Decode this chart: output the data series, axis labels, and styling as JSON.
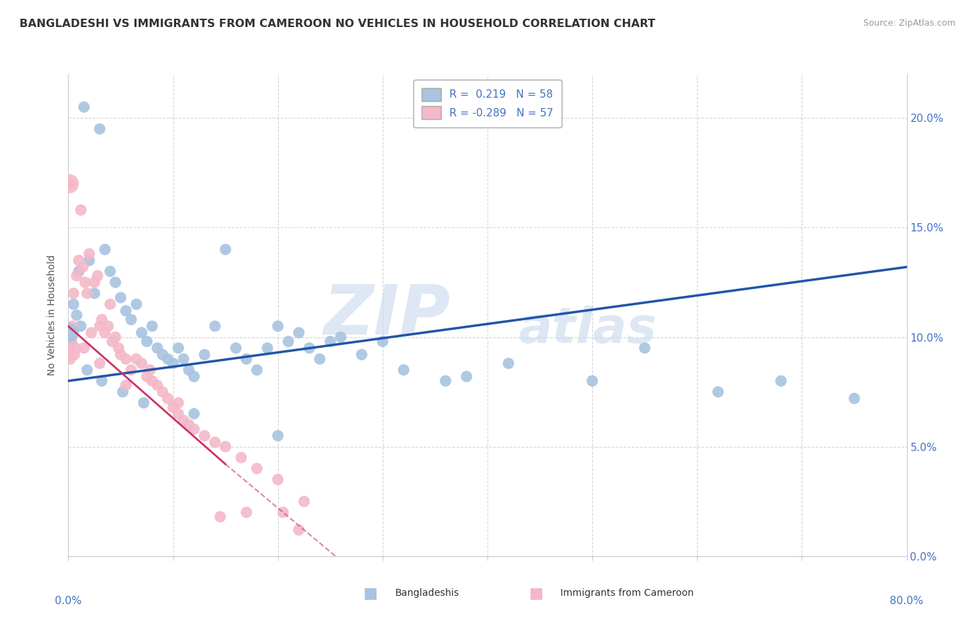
{
  "title": "BANGLADESHI VS IMMIGRANTS FROM CAMEROON NO VEHICLES IN HOUSEHOLD CORRELATION CHART",
  "source": "Source: ZipAtlas.com",
  "ylabel": "No Vehicles in Household",
  "watermark_text": "ZIP",
  "watermark_text2": "atlas",
  "blue_color": "#a8c4e0",
  "pink_color": "#f4b8c8",
  "blue_line_color": "#2255aa",
  "pink_line_solid_color": "#cc3366",
  "pink_line_dash_color": "#e8aabb",
  "r_blue": 0.219,
  "r_pink": -0.289,
  "n_blue": 58,
  "n_pink": 57,
  "xmin": 0.0,
  "xmax": 80.0,
  "ymin": 0.0,
  "ymax": 22.0,
  "yticks": [
    0.0,
    5.0,
    10.0,
    15.0,
    20.0
  ],
  "xticks": [
    0.0,
    10.0,
    20.0,
    30.0,
    40.0,
    50.0,
    60.0,
    70.0,
    80.0
  ],
  "blue_scatter_x": [
    1.5,
    3.0,
    1.0,
    0.5,
    0.8,
    1.2,
    2.0,
    2.5,
    3.5,
    4.0,
    4.5,
    5.0,
    5.5,
    6.0,
    6.5,
    7.0,
    7.5,
    8.0,
    8.5,
    9.0,
    9.5,
    10.0,
    10.5,
    11.0,
    11.5,
    12.0,
    13.0,
    14.0,
    15.0,
    16.0,
    17.0,
    18.0,
    19.0,
    20.0,
    21.0,
    22.0,
    23.0,
    24.0,
    25.0,
    26.0,
    28.0,
    30.0,
    32.0,
    36.0,
    38.0,
    42.0,
    50.0,
    55.0,
    62.0,
    68.0,
    75.0,
    0.3,
    1.8,
    3.2,
    5.2,
    7.2,
    12.0,
    20.0
  ],
  "blue_scatter_y": [
    20.5,
    19.5,
    13.0,
    11.5,
    11.0,
    10.5,
    13.5,
    12.0,
    14.0,
    13.0,
    12.5,
    11.8,
    11.2,
    10.8,
    11.5,
    10.2,
    9.8,
    10.5,
    9.5,
    9.2,
    9.0,
    8.8,
    9.5,
    9.0,
    8.5,
    8.2,
    9.2,
    10.5,
    14.0,
    9.5,
    9.0,
    8.5,
    9.5,
    10.5,
    9.8,
    10.2,
    9.5,
    9.0,
    9.8,
    10.0,
    9.2,
    9.8,
    8.5,
    8.0,
    8.2,
    8.8,
    8.0,
    9.5,
    7.5,
    8.0,
    7.2,
    9.8,
    8.5,
    8.0,
    7.5,
    7.0,
    6.5,
    5.5
  ],
  "pink_scatter_x": [
    0.1,
    0.2,
    0.3,
    0.4,
    0.5,
    0.6,
    0.8,
    1.0,
    1.2,
    1.4,
    1.6,
    1.8,
    2.0,
    2.2,
    2.5,
    2.8,
    3.0,
    3.2,
    3.5,
    3.8,
    4.0,
    4.2,
    4.5,
    4.8,
    5.0,
    5.5,
    6.0,
    6.5,
    7.0,
    7.5,
    8.0,
    8.5,
    9.0,
    9.5,
    10.0,
    10.5,
    11.0,
    11.5,
    12.0,
    13.0,
    14.0,
    15.0,
    16.5,
    18.0,
    20.0,
    22.0,
    0.2,
    0.7,
    1.5,
    3.0,
    5.5,
    7.8,
    10.5,
    14.5,
    17.0,
    20.5,
    22.5
  ],
  "pink_scatter_y": [
    9.5,
    9.0,
    9.8,
    10.5,
    12.0,
    9.2,
    12.8,
    13.5,
    15.8,
    13.2,
    12.5,
    12.0,
    13.8,
    10.2,
    12.5,
    12.8,
    10.5,
    10.8,
    10.2,
    10.5,
    11.5,
    9.8,
    10.0,
    9.5,
    9.2,
    9.0,
    8.5,
    9.0,
    8.8,
    8.2,
    8.0,
    7.8,
    7.5,
    7.2,
    6.8,
    6.5,
    6.2,
    6.0,
    5.8,
    5.5,
    5.2,
    5.0,
    4.5,
    4.0,
    3.5,
    1.2,
    17.0,
    9.5,
    9.5,
    8.8,
    7.8,
    8.5,
    7.0,
    1.8,
    2.0,
    2.0,
    2.5
  ],
  "blue_trend_x_start": 0.0,
  "blue_trend_x_end": 80.0,
  "blue_trend_y_start": 8.0,
  "blue_trend_y_end": 13.2,
  "pink_trend_solid_x_start": 0.0,
  "pink_trend_solid_x_end": 15.0,
  "pink_trend_y_start": 10.5,
  "pink_trend_y_end": 4.2,
  "pink_trend_dash_x_start": 15.0,
  "pink_trend_dash_x_end": 28.0,
  "pink_trend_dash_y_start": 4.2,
  "pink_trend_dash_y_end": -1.0
}
